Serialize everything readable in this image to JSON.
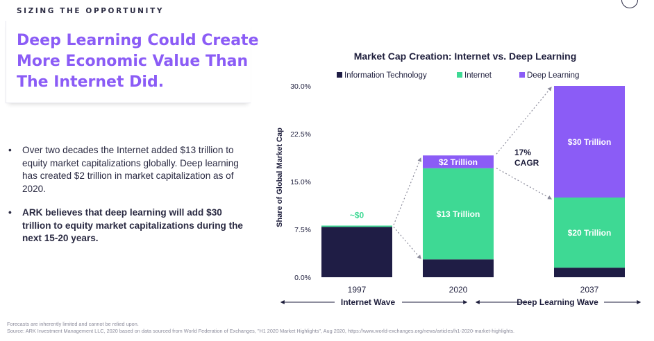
{
  "section_label": "SIZING THE OPPORTUNITY",
  "headline": "Deep Learning Could Create\nMore Economic Value Than\nThe Internet Did.",
  "bullets": [
    "Over two decades the Internet added $13 trillion to equity market capitalizations globally. Deep learning has created $2 trillion in market capitalization as of 2020.",
    "ARK believes that deep learning will add $30 trillion to equity market capitalizations during the next 15-20 years."
  ],
  "footer": {
    "disclaimer": "Forecasts are inherently limited and cannot be relied upon.",
    "source": "Source: ARK Investment Management LLC, 2020 based on data sourced from World Federation of Exchanges, \"H1 2020 Market Highlights\", Aug 2020, https://www.world-exchanges.org/news/articles/h1-2020-market-highlights."
  },
  "colors": {
    "accent": "#8b5cf6",
    "information_technology": "#1f1d45",
    "internet": "#3ed994",
    "deep_learning": "#8b5cf6"
  },
  "chart_data": {
    "type": "bar",
    "stacked": true,
    "title": "Market Cap Creation: Internet vs. Deep Learning",
    "ylabel": "Share of Global Market Cap",
    "xlabel": "",
    "ylim": [
      0,
      30
    ],
    "yticks": [
      "0.0%",
      "7.5%",
      "15.0%",
      "22.5%",
      "30.0%"
    ],
    "categories": [
      "1997",
      "2020",
      "2037"
    ],
    "series": [
      {
        "name": "Information Technology",
        "color": "#1f1d45",
        "values": [
          7.9,
          2.8,
          1.5
        ],
        "labels": [
          "",
          "",
          ""
        ]
      },
      {
        "name": "Internet",
        "color": "#3ed994",
        "values": [
          0.2,
          14.3,
          11.0
        ],
        "labels": [
          "~$0",
          "$13 Trillion",
          "$20 Trillion"
        ]
      },
      {
        "name": "Deep Learning",
        "color": "#8b5cf6",
        "values": [
          0,
          2.0,
          17.5
        ],
        "labels": [
          "",
          "$2 Trillion",
          "$30 Trillion"
        ]
      }
    ],
    "legend_position": "top",
    "grid": false,
    "annotations": {
      "cagr": [
        "17%",
        "CAGR"
      ],
      "waves": [
        "Internet Wave",
        "Deep Learning Wave"
      ]
    }
  }
}
